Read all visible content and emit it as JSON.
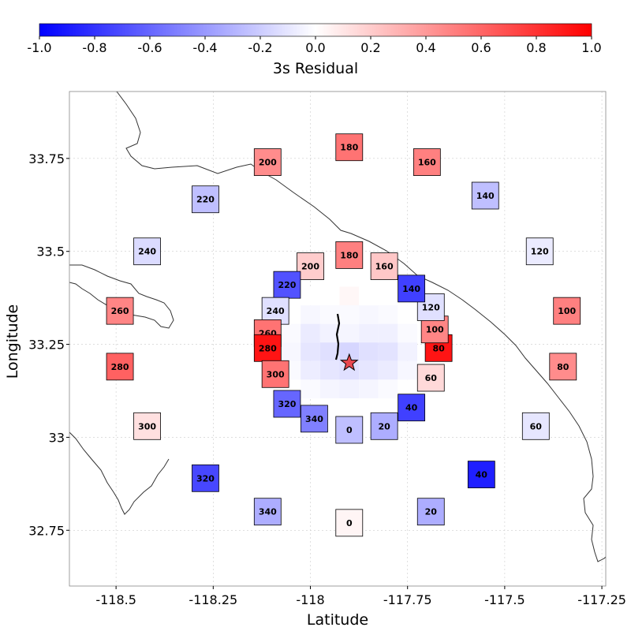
{
  "chart_data": {
    "type": "heatmap",
    "title": "",
    "colorbar": {
      "label": "3s Residual",
      "range": [
        -1.0,
        1.0
      ],
      "tick_values": [
        -1.0,
        -0.8,
        -0.6,
        -0.4,
        -0.2,
        0.0,
        0.2,
        0.4,
        0.6,
        0.8,
        1.0
      ],
      "tick_labels": [
        "-1.0",
        "-0.8",
        "-0.6",
        "-0.4",
        "-0.2",
        "0.0",
        "0.2",
        "0.4",
        "0.6",
        "0.8",
        "1.0"
      ],
      "colors": {
        "low": "#0000ff",
        "mid": "#ffffff",
        "high": "#ff0000"
      }
    },
    "xlabel": "Latitude",
    "ylabel": "Longitude",
    "xlim": [
      -118.62,
      -117.24
    ],
    "ylim": [
      32.6,
      33.93
    ],
    "xticks": [
      -118.5,
      -118.25,
      -118.0,
      -117.75,
      -117.5,
      -117.25
    ],
    "xtick_labels": [
      "-118.5",
      "-118.25",
      "-118",
      "-117.75",
      "-117.5",
      "-117.25"
    ],
    "yticks": [
      32.75,
      33.0,
      33.25,
      33.5,
      33.75
    ],
    "ytick_labels": [
      "32.75",
      "33",
      "33.25",
      "33.5",
      "33.75"
    ],
    "epicenter": {
      "lon": -117.9,
      "lat": 33.2
    },
    "grid": true,
    "outer_ring": [
      {
        "azimuth": "0",
        "lon": -117.9,
        "lat": 32.77,
        "value": 0.04
      },
      {
        "azimuth": "20",
        "lon": -117.69,
        "lat": 32.8,
        "value": -0.32
      },
      {
        "azimuth": "40",
        "lon": -117.56,
        "lat": 32.9,
        "value": -0.88
      },
      {
        "azimuth": "60",
        "lon": -117.42,
        "lat": 33.03,
        "value": -0.1
      },
      {
        "azimuth": "80",
        "lon": -117.35,
        "lat": 33.19,
        "value": 0.45
      },
      {
        "azimuth": "100",
        "lon": -117.34,
        "lat": 33.34,
        "value": 0.5
      },
      {
        "azimuth": "120",
        "lon": -117.41,
        "lat": 33.5,
        "value": -0.08
      },
      {
        "azimuth": "140",
        "lon": -117.55,
        "lat": 33.65,
        "value": -0.25
      },
      {
        "azimuth": "160",
        "lon": -117.7,
        "lat": 33.74,
        "value": 0.5
      },
      {
        "azimuth": "180",
        "lon": -117.9,
        "lat": 33.78,
        "value": 0.55
      },
      {
        "azimuth": "200",
        "lon": -118.11,
        "lat": 33.74,
        "value": 0.45
      },
      {
        "azimuth": "220",
        "lon": -118.27,
        "lat": 33.64,
        "value": -0.25
      },
      {
        "azimuth": "240",
        "lon": -118.42,
        "lat": 33.5,
        "value": -0.14
      },
      {
        "azimuth": "260",
        "lon": -118.49,
        "lat": 33.34,
        "value": 0.48
      },
      {
        "azimuth": "280",
        "lon": -118.49,
        "lat": 33.19,
        "value": 0.62
      },
      {
        "azimuth": "300",
        "lon": -118.42,
        "lat": 33.03,
        "value": 0.12
      },
      {
        "azimuth": "320",
        "lon": -118.27,
        "lat": 32.89,
        "value": -0.72
      },
      {
        "azimuth": "340",
        "lon": -118.11,
        "lat": 32.8,
        "value": -0.32
      }
    ],
    "inner_ring": [
      {
        "azimuth": "0",
        "lon": -117.9,
        "lat": 33.02,
        "value": -0.25
      },
      {
        "azimuth": "20",
        "lon": -117.81,
        "lat": 33.03,
        "value": -0.32
      },
      {
        "azimuth": "40",
        "lon": -117.74,
        "lat": 33.08,
        "value": -0.75
      },
      {
        "azimuth": "60",
        "lon": -117.69,
        "lat": 33.16,
        "value": 0.15
      },
      {
        "azimuth": "80",
        "lon": -117.67,
        "lat": 33.24,
        "value": 0.92
      },
      {
        "azimuth": "100",
        "lon": -117.68,
        "lat": 33.29,
        "value": 0.48
      },
      {
        "azimuth": "120",
        "lon": -117.69,
        "lat": 33.35,
        "value": -0.12
      },
      {
        "azimuth": "140",
        "lon": -117.74,
        "lat": 33.4,
        "value": -0.75
      },
      {
        "azimuth": "160",
        "lon": -117.81,
        "lat": 33.46,
        "value": 0.22
      },
      {
        "azimuth": "180",
        "lon": -117.9,
        "lat": 33.49,
        "value": 0.5
      },
      {
        "azimuth": "200",
        "lon": -118.0,
        "lat": 33.46,
        "value": 0.2
      },
      {
        "azimuth": "220",
        "lon": -118.06,
        "lat": 33.41,
        "value": -0.68
      },
      {
        "azimuth": "240",
        "lon": -118.09,
        "lat": 33.34,
        "value": -0.12
      },
      {
        "azimuth": "260",
        "lon": -118.11,
        "lat": 33.28,
        "value": 0.55
      },
      {
        "azimuth": "280",
        "lon": -118.11,
        "lat": 33.24,
        "value": 0.92
      },
      {
        "azimuth": "300",
        "lon": -118.09,
        "lat": 33.17,
        "value": 0.55
      },
      {
        "azimuth": "320",
        "lon": -118.06,
        "lat": 33.09,
        "value": -0.6
      },
      {
        "azimuth": "340",
        "lon": -117.99,
        "lat": 33.05,
        "value": -0.5
      }
    ],
    "center_grid": {
      "lon_centers": [
        -118.05,
        -118.0,
        -117.95,
        -117.9,
        -117.85,
        -117.8,
        -117.75
      ],
      "lat_centers": [
        33.38,
        33.33,
        33.28,
        33.23,
        33.18,
        33.13
      ],
      "values": [
        [
          0.0,
          0.0,
          0.0,
          0.03,
          0.0,
          0.0,
          0.0
        ],
        [
          0.0,
          -0.03,
          -0.02,
          -0.02,
          -0.03,
          -0.02,
          0.0
        ],
        [
          -0.02,
          -0.08,
          -0.05,
          -0.04,
          -0.06,
          -0.06,
          -0.02
        ],
        [
          -0.03,
          -0.1,
          -0.12,
          -0.16,
          -0.12,
          -0.11,
          -0.05
        ],
        [
          -0.02,
          -0.07,
          -0.1,
          -0.12,
          -0.1,
          -0.08,
          -0.03
        ],
        [
          0.0,
          -0.02,
          -0.04,
          -0.05,
          -0.04,
          -0.02,
          0.0
        ]
      ]
    }
  }
}
